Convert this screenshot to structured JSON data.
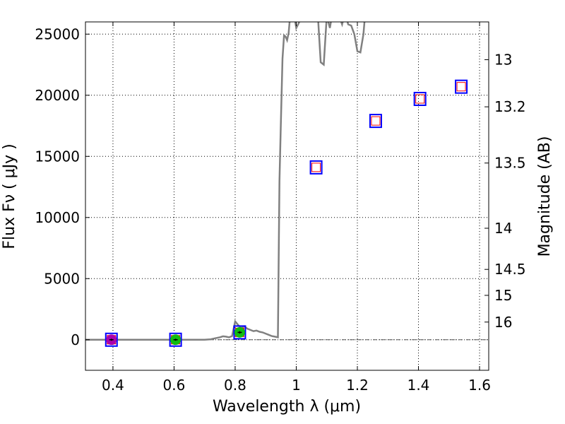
{
  "chart_data": {
    "type": "scatter",
    "xlabel": "Wavelength  λ (μm)",
    "ylabel": "Flux  Fν  ( μJy )",
    "ylabel_right": "Magnitude (AB)",
    "xlim": [
      0.31,
      1.63
    ],
    "ylim": [
      -2500,
      26000
    ],
    "grid": true,
    "x_ticks": [
      {
        "value": 0.4,
        "label": "0.4"
      },
      {
        "value": 0.6,
        "label": "0.6"
      },
      {
        "value": 0.8,
        "label": "0.8"
      },
      {
        "value": 1.0,
        "label": "1"
      },
      {
        "value": 1.2,
        "label": "1.2"
      },
      {
        "value": 1.4,
        "label": "1.4"
      },
      {
        "value": 1.6,
        "label": "1.6"
      }
    ],
    "y_ticks": [
      {
        "value": 0,
        "label": "0"
      },
      {
        "value": 5000,
        "label": "5000"
      },
      {
        "value": 10000,
        "label": "10000"
      },
      {
        "value": 15000,
        "label": "15000"
      },
      {
        "value": 20000,
        "label": "20000"
      },
      {
        "value": 25000,
        "label": "25000"
      }
    ],
    "mag_ticks": [
      {
        "value": 13,
        "label": "13"
      },
      {
        "value": 13.2,
        "label": "13.2"
      },
      {
        "value": 13.5,
        "label": "13.5"
      },
      {
        "value": 14,
        "label": "14"
      },
      {
        "value": 14.5,
        "label": "14.5"
      },
      {
        "value": 15,
        "label": "15"
      },
      {
        "value": 16,
        "label": "16"
      }
    ],
    "model_spectrum": {
      "color": "#808080",
      "x": [
        0.31,
        0.7,
        0.72,
        0.74,
        0.75,
        0.76,
        0.77,
        0.78,
        0.79,
        0.8,
        0.81,
        0.82,
        0.83,
        0.84,
        0.85,
        0.86,
        0.87,
        0.88,
        0.89,
        0.9,
        0.91,
        0.92,
        0.93,
        0.94,
        0.945,
        0.95,
        0.955,
        0.96,
        0.965,
        0.97,
        0.975,
        0.98,
        0.985,
        0.99,
        1.0,
        1.01,
        1.02,
        1.03,
        1.04,
        1.05,
        1.06,
        1.07,
        1.08,
        1.09,
        1.1,
        1.11,
        1.12,
        1.13,
        1.14,
        1.15,
        1.16,
        1.17,
        1.18,
        1.19,
        1.2,
        1.21,
        1.22,
        1.23
      ],
      "y": [
        0,
        0,
        40,
        150,
        200,
        280,
        250,
        200,
        300,
        1500,
        1200,
        950,
        1100,
        900,
        800,
        700,
        750,
        650,
        600,
        500,
        400,
        300,
        250,
        200,
        13000,
        18000,
        23000,
        24900,
        24800,
        24500,
        25100,
        26500,
        26800,
        27000,
        25500,
        26000,
        26800,
        27500,
        28000,
        27800,
        26000,
        26800,
        22700,
        22500,
        26500,
        25500,
        27000,
        27500,
        26500,
        25800,
        26800,
        25800,
        25700,
        25000,
        23600,
        23500,
        25000,
        28000
      ]
    },
    "series": [
      {
        "name": "",
        "color": "#aa00aa",
        "marker": "circle",
        "x": [
          0.395
        ],
        "y": [
          0
        ],
        "yerr": [
          80
        ]
      },
      {
        "name": "",
        "color": "#11bb11",
        "marker": "circle",
        "x": [
          0.605,
          0.815
        ],
        "y": [
          0,
          600
        ],
        "yerr": [
          80,
          100
        ]
      }
    ],
    "model_boxes": {
      "outer_color": "#0000ff",
      "inner_color": "#ff0000",
      "x": [
        0.395,
        0.605,
        0.815,
        1.065,
        1.26,
        1.405,
        1.54
      ],
      "y": [
        0,
        0,
        600,
        14100,
        17900,
        19700,
        20700
      ]
    }
  }
}
